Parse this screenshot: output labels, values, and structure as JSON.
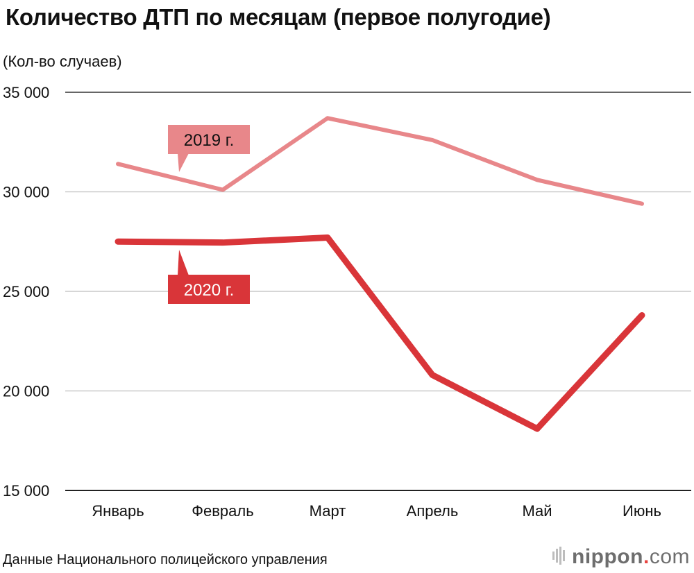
{
  "chart_data": {
    "type": "line",
    "title": "Количество ДТП по месяцам (первое полугодие)",
    "ylabel": "(Кол-во случаев)",
    "xlabel": "",
    "categories": [
      "Январь",
      "Февраль",
      "Март",
      "Апрель",
      "Май",
      "Июнь"
    ],
    "ylim": [
      15000,
      35000
    ],
    "yticks": [
      35000,
      30000,
      25000,
      20000,
      15000
    ],
    "ytick_labels": [
      "35 000",
      "30 000",
      "25 000",
      "20 000",
      "15 000"
    ],
    "grid": true,
    "series": [
      {
        "name": "2019 г.",
        "color": "#e8878a",
        "values": [
          31400,
          30100,
          33700,
          32600,
          30600,
          29400
        ]
      },
      {
        "name": "2020 г.",
        "color": "#d93539",
        "values": [
          27500,
          27450,
          27700,
          20800,
          18100,
          23800
        ]
      }
    ]
  },
  "footer": {
    "source": "Данные Национального полицейского управления",
    "logo_name": "nippon",
    "logo_dot": ".",
    "logo_suffix": "com"
  }
}
